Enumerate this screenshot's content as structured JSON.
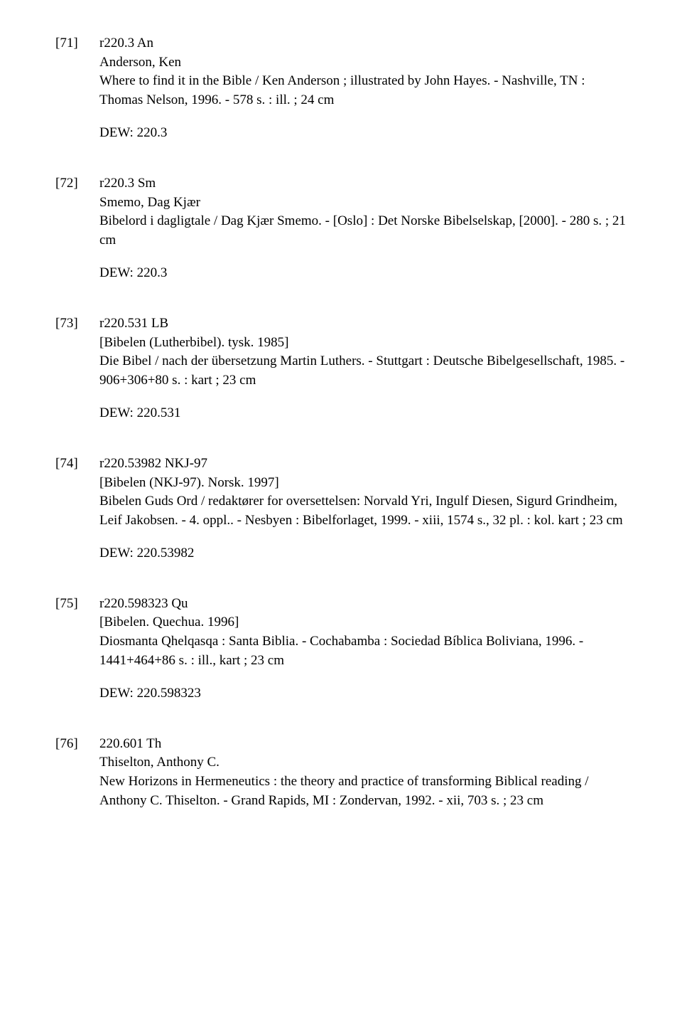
{
  "entries": [
    {
      "num": "[71]",
      "callno": "r220.3 An",
      "author": "Anderson, Ken",
      "title": "Where to find it in the Bible / Ken Anderson ; illustrated by John Hayes. - Nashville, TN : Thomas Nelson, 1996. - 578 s. : ill. ; 24 cm",
      "dew": "DEW: 220.3"
    },
    {
      "num": "[72]",
      "callno": "r220.3 Sm",
      "author": "Smemo, Dag Kjær",
      "title": "Bibelord i dagligtale / Dag Kjær Smemo. - [Oslo] : Det Norske Bibelselskap, [2000]. - 280 s. ; 21 cm",
      "dew": "DEW: 220.3"
    },
    {
      "num": "[73]",
      "callno": "r220.531 LB",
      "author": "[Bibelen (Lutherbibel). tysk. 1985]",
      "title": "Die Bibel / nach der übersetzung Martin Luthers. - Stuttgart : Deutsche Bibelgesellschaft, 1985. - 906+306+80 s. : kart ; 23 cm",
      "dew": "DEW: 220.531"
    },
    {
      "num": "[74]",
      "callno": "r220.53982 NKJ-97",
      "author": "[Bibelen (NKJ-97). Norsk. 1997]",
      "title": "Bibelen Guds Ord / redaktører for oversettelsen: Norvald Yri, Ingulf Diesen, Sigurd Grindheim, Leif Jakobsen. - 4. oppl.. - Nesbyen : Bibelforlaget, 1999. - xiii, 1574 s., 32 pl. : kol. kart ; 23 cm",
      "dew": "DEW: 220.53982"
    },
    {
      "num": "[75]",
      "callno": "r220.598323 Qu",
      "author": "[Bibelen. Quechua. 1996]",
      "title": "Diosmanta Qhelqasqa : Santa Biblia. - Cochabamba : Sociedad Bíblica Boliviana, 1996. - 1441+464+86 s. : ill., kart ; 23 cm",
      "dew": "DEW: 220.598323"
    },
    {
      "num": "[76]",
      "callno": "220.601 Th",
      "author": "Thiselton, Anthony C.",
      "title": "New Horizons in Hermeneutics : the theory and practice of transforming Biblical reading / Anthony C. Thiselton. - Grand Rapids, MI : Zondervan, 1992. - xii, 703 s. ; 23 cm",
      "dew": ""
    }
  ]
}
